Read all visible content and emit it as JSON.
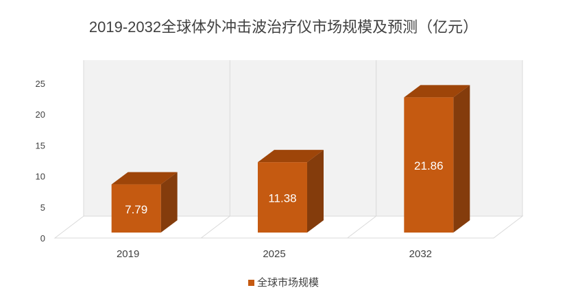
{
  "chart_data": {
    "type": "bar",
    "title": "2019-2032全球体外冲击波治疗仪市场规模及预测（亿元）",
    "categories": [
      "2019",
      "2025",
      "2032"
    ],
    "series": [
      {
        "name": "全球市场规模",
        "values": [
          7.79,
          11.38,
          21.86
        ]
      }
    ],
    "data_labels": [
      "7.79",
      "11.38",
      "21.86"
    ],
    "ylim": [
      0,
      25
    ],
    "yticks": [
      0,
      5,
      10,
      15,
      20,
      25
    ],
    "grid": true,
    "three_d": true,
    "legend_position": "bottom",
    "colors": {
      "bar_front": "#c55a11",
      "bar_top": "#9e4509",
      "bar_side": "#843c0c",
      "wall": "#f2f2f2",
      "grid": "#d9d9d9",
      "text": "#404040",
      "label": "#ffffff"
    }
  }
}
